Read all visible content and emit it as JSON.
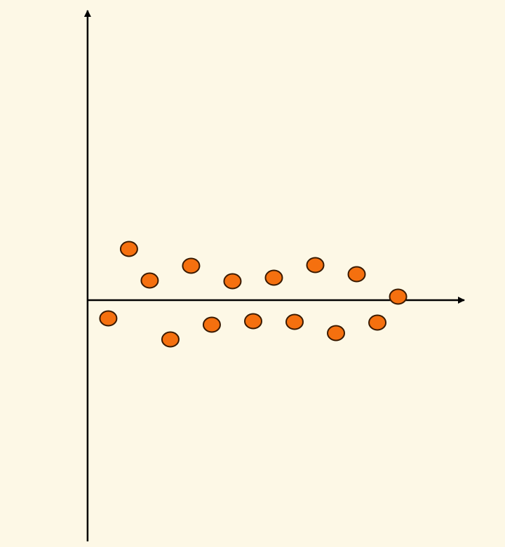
{
  "chart_data": {
    "type": "scatter",
    "x": [
      1,
      2,
      3,
      4,
      5,
      6,
      7,
      8,
      9,
      10,
      11,
      12,
      13,
      14,
      15
    ],
    "y": [
      -2.6,
      7.3,
      2.8,
      -5.6,
      4.9,
      -3.5,
      2.7,
      -3.0,
      3.2,
      -3.1,
      5.0,
      -4.7,
      3.7,
      -3.2,
      0.5
    ],
    "xlim": [
      -2.3,
      18.2
    ],
    "ylim": [
      -34.4,
      41.3
    ],
    "color": "#f5700f"
  }
}
